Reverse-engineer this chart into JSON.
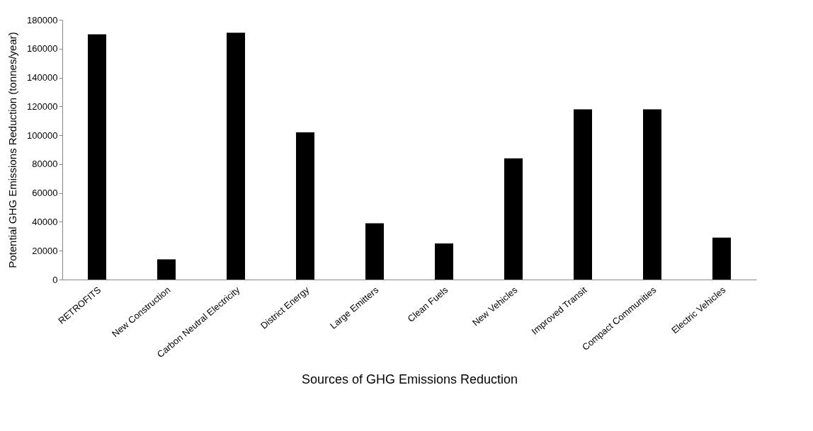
{
  "chart_data": {
    "type": "bar",
    "xlabel": "Sources of GHG Emissions Reduction",
    "ylabel": "Potential GHG Emissions Reduction (tonnes/year)",
    "categories": [
      "RETROFITS",
      "New Construction",
      "Carbon Neutral Electricity",
      "District Energy",
      "Large Emitters",
      "Clean Fuels",
      "New Vehicles",
      "Improved Transit",
      "Compact Communities",
      "Electric Vehicles"
    ],
    "values": [
      170000,
      14000,
      171000,
      102000,
      39000,
      25000,
      84000,
      118000,
      118000,
      29000
    ],
    "color": "#000000",
    "ylim": [
      0,
      180000
    ],
    "yticks": [
      0,
      20000,
      40000,
      60000,
      80000,
      100000,
      120000,
      140000,
      160000,
      180000
    ],
    "grid": false,
    "legend": false
  }
}
